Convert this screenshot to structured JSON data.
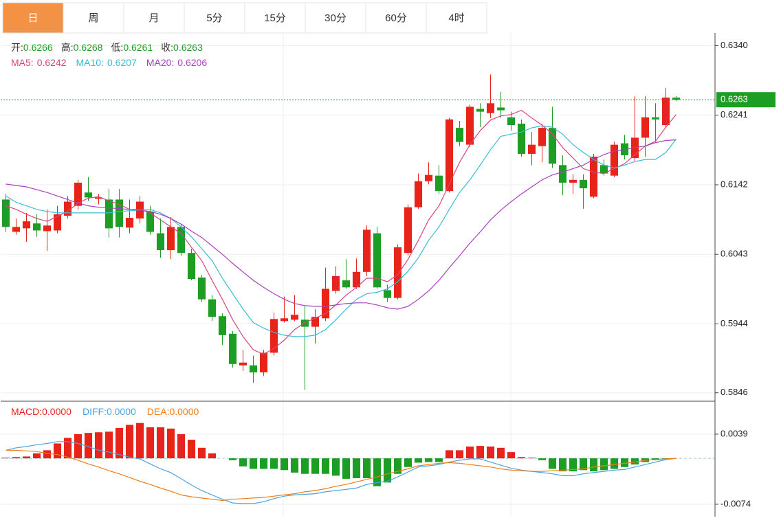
{
  "tabs": [
    "日",
    "周",
    "月",
    "5分",
    "15分",
    "30分",
    "60分",
    "4时"
  ],
  "active_tab": 0,
  "chart_data": [
    {
      "type": "candlestick",
      "categories": [
        null,
        null,
        null,
        null,
        null,
        null,
        null,
        null,
        null,
        null,
        null,
        null,
        null,
        null,
        null,
        null,
        null,
        null,
        null,
        null,
        null,
        null,
        null,
        null,
        null,
        null,
        null,
        null,
        null,
        null,
        null,
        null,
        null,
        null,
        null,
        null,
        null,
        null,
        null,
        null,
        null,
        null,
        null,
        null,
        null,
        null,
        null,
        null,
        null,
        null,
        null,
        null,
        null,
        null,
        null,
        null,
        null,
        null,
        null,
        null,
        null,
        null,
        null,
        null,
        null,
        null
      ],
      "up_color": "#e8231a",
      "down_color": "#1b9e23",
      "grid": true,
      "ylim": [
        0.5835,
        0.6358
      ],
      "yticks": [
        {
          "value": 0.634,
          "label": "0.6340"
        },
        0.6241,
        0.6142,
        0.6043,
        0.5944,
        0.5846
      ],
      "ohlc": [
        {
          "label": "开:",
          "value": 0.6266
        },
        {
          "label": "高:",
          "value": 0.6268
        },
        {
          "label": "低:",
          "value": 0.6261
        },
        {
          "label": "收:",
          "value": 0.6263
        }
      ],
      "open": [
        0.6121,
        0.6075,
        0.608,
        0.6087,
        0.6076,
        0.6077,
        0.6098,
        0.6112,
        0.6131,
        0.6122,
        0.6121,
        0.6121,
        0.6081,
        0.6094,
        0.6104,
        0.6073,
        0.6049,
        0.6082,
        0.6045,
        0.601,
        0.5979,
        0.5955,
        0.593,
        0.5885,
        0.5885,
        0.5875,
        0.5903,
        0.5948,
        0.595,
        0.595,
        0.594,
        0.5952,
        0.5991,
        0.6006,
        0.5996,
        0.6018,
        0.6073,
        0.5992,
        0.5981,
        0.6045,
        0.611,
        0.6147,
        0.6155,
        0.6133,
        0.6223,
        0.6199,
        0.625,
        0.6244,
        0.6252,
        0.6238,
        0.6229,
        0.6186,
        0.6197,
        0.6223,
        0.617,
        0.6145,
        0.6149,
        0.6125,
        0.617,
        0.6155,
        0.6201,
        0.618,
        0.6209,
        0.6238,
        0.6227,
        0.6266
      ],
      "high": [
        0.6129,
        0.6094,
        0.6102,
        0.61,
        0.6107,
        0.6112,
        0.6126,
        0.6149,
        0.6153,
        0.6129,
        0.6136,
        0.6136,
        0.6121,
        0.6126,
        0.6112,
        0.6094,
        0.6096,
        0.6086,
        0.6051,
        0.6014,
        0.5985,
        0.5959,
        0.5934,
        0.5907,
        0.5899,
        0.5907,
        0.596,
        0.5983,
        0.5985,
        0.5969,
        0.5965,
        0.6024,
        0.6026,
        0.6036,
        0.6037,
        0.6084,
        0.6082,
        0.6,
        0.6057,
        0.6114,
        0.6158,
        0.6174,
        0.617,
        0.6237,
        0.6233,
        0.6256,
        0.6258,
        0.6299,
        0.6274,
        0.6246,
        0.6235,
        0.6217,
        0.6229,
        0.6253,
        0.6184,
        0.6157,
        0.6157,
        0.6186,
        0.6178,
        0.6203,
        0.6213,
        0.6268,
        0.6268,
        0.6258,
        0.628,
        0.6268
      ],
      "low": [
        0.6075,
        0.6071,
        0.6061,
        0.6068,
        0.6048,
        0.6073,
        0.6094,
        0.6107,
        0.6119,
        0.6114,
        0.6067,
        0.6067,
        0.6073,
        0.6087,
        0.6071,
        0.6038,
        0.6036,
        0.6041,
        0.6006,
        0.5975,
        0.5948,
        0.5914,
        0.5882,
        0.5877,
        0.586,
        0.587,
        0.5899,
        0.5946,
        0.5948,
        0.585,
        0.5916,
        0.5948,
        0.5987,
        0.5994,
        0.5994,
        0.6012,
        0.5994,
        0.5975,
        0.5979,
        0.6041,
        0.6108,
        0.6143,
        0.6129,
        0.6131,
        0.6197,
        0.6196,
        0.6224,
        0.6237,
        0.6237,
        0.6219,
        0.6182,
        0.617,
        0.6174,
        0.6166,
        0.6127,
        0.6129,
        0.6108,
        0.6123,
        0.6155,
        0.6153,
        0.6178,
        0.6176,
        0.6182,
        0.6203,
        0.6223,
        0.6261
      ],
      "close": [
        0.6082,
        0.6082,
        0.609,
        0.6077,
        0.6084,
        0.61,
        0.6118,
        0.6145,
        0.6124,
        0.6124,
        0.608,
        0.6082,
        0.6095,
        0.6118,
        0.6075,
        0.6049,
        0.6082,
        0.6045,
        0.6008,
        0.5979,
        0.5954,
        0.5928,
        0.5887,
        0.5889,
        0.5875,
        0.5903,
        0.5951,
        0.5952,
        0.5957,
        0.594,
        0.5954,
        0.5994,
        0.6012,
        0.5996,
        0.6018,
        0.6078,
        0.5996,
        0.5981,
        0.6053,
        0.611,
        0.6147,
        0.6156,
        0.6133,
        0.6235,
        0.6203,
        0.6253,
        0.6246,
        0.6258,
        0.6248,
        0.6227,
        0.6186,
        0.6199,
        0.6223,
        0.6172,
        0.6145,
        0.6149,
        0.6137,
        0.6182,
        0.6158,
        0.6199,
        0.6184,
        0.6209,
        0.6238,
        0.6235,
        0.6266,
        0.6263
      ],
      "series": [
        {
          "label": "MA5:",
          "value": 0.6242,
          "color": "#d6467f",
          "values": [
            0.6112,
            0.6107,
            0.61,
            0.6094,
            0.609,
            0.6097,
            0.6104,
            0.6116,
            0.6123,
            0.6125,
            0.6119,
            0.6114,
            0.6107,
            0.6107,
            0.6102,
            0.6092,
            0.6082,
            0.6073,
            0.6053,
            0.6034,
            0.6006,
            0.5979,
            0.595,
            0.5926,
            0.5907,
            0.5901,
            0.5909,
            0.5921,
            0.5936,
            0.5946,
            0.5952,
            0.5959,
            0.5971,
            0.5985,
            0.5996,
            0.6009,
            0.6009,
            0.6004,
            0.6014,
            0.6036,
            0.6063,
            0.6092,
            0.6112,
            0.6143,
            0.6174,
            0.6199,
            0.6219,
            0.6234,
            0.624,
            0.6242,
            0.6248,
            0.6237,
            0.6227,
            0.6214,
            0.6195,
            0.618,
            0.6165,
            0.616,
            0.6158,
            0.6165,
            0.6172,
            0.6185,
            0.6197,
            0.6204,
            0.6224,
            0.6242
          ]
        },
        {
          "label": "MA10:",
          "value": 0.6207,
          "color": "#3bbcd6",
          "values": [
            0.6126,
            0.6117,
            0.6112,
            0.6107,
            0.6104,
            0.6102,
            0.6102,
            0.6102,
            0.6102,
            0.6102,
            0.6102,
            0.6104,
            0.6105,
            0.6106,
            0.6107,
            0.6102,
            0.6094,
            0.6082,
            0.6068,
            0.6051,
            0.6034,
            0.6009,
            0.5987,
            0.5965,
            0.5946,
            0.5938,
            0.5932,
            0.5928,
            0.5926,
            0.5926,
            0.5928,
            0.5936,
            0.595,
            0.5965,
            0.5979,
            0.5987,
            0.5989,
            0.5994,
            0.6004,
            0.6019,
            0.6038,
            0.6063,
            0.6082,
            0.6107,
            0.6131,
            0.6149,
            0.617,
            0.6192,
            0.6211,
            0.6214,
            0.6217,
            0.6223,
            0.6226,
            0.6224,
            0.6214,
            0.6199,
            0.6188,
            0.6178,
            0.617,
            0.6166,
            0.617,
            0.6175,
            0.6178,
            0.6178,
            0.6188,
            0.6207
          ]
        },
        {
          "label": "MA20:",
          "value": 0.6206,
          "color": "#a742bd",
          "values": [
            0.6143,
            0.6141,
            0.6139,
            0.6135,
            0.6131,
            0.6126,
            0.6121,
            0.6116,
            0.6112,
            0.611,
            0.6109,
            0.6108,
            0.6107,
            0.6106,
            0.6104,
            0.61,
            0.6094,
            0.6086,
            0.6076,
            0.6067,
            0.6055,
            0.6043,
            0.603,
            0.6018,
            0.6006,
            0.5996,
            0.5987,
            0.5979,
            0.5973,
            0.597,
            0.5969,
            0.5969,
            0.5971,
            0.5973,
            0.5974,
            0.5974,
            0.5971,
            0.5967,
            0.5965,
            0.5969,
            0.5979,
            0.5991,
            0.6006,
            0.6024,
            0.6041,
            0.6059,
            0.6075,
            0.6092,
            0.6106,
            0.6118,
            0.6129,
            0.6139,
            0.6149,
            0.6156,
            0.616,
            0.6165,
            0.617,
            0.6178,
            0.6185,
            0.619,
            0.6192,
            0.6195,
            0.6197,
            0.6202,
            0.6205,
            0.6206
          ]
        }
      ]
    },
    {
      "type": "macd",
      "up_color": "#e8231a",
      "down_color": "#1b9e23",
      "grid": true,
      "ylim": [
        -0.0094,
        0.0091
      ],
      "yticks": [
        0.0039,
        -0.0074
      ],
      "histogram": {
        "label": "MACD:",
        "value": 0,
        "value_label": "0.0000",
        "color": "#e8231a",
        "values": [
          0.0001,
          0.0002,
          0.0003,
          0.0008,
          0.0013,
          0.0024,
          0.0033,
          0.0039,
          0.0041,
          0.0042,
          0.0043,
          0.0049,
          0.0054,
          0.0057,
          0.005,
          0.005,
          0.0048,
          0.0039,
          0.003,
          0.0017,
          0.0008,
          0,
          -0.0003,
          -0.0013,
          -0.0017,
          -0.0017,
          -0.0017,
          -0.0019,
          -0.0023,
          -0.0025,
          -0.0025,
          -0.0025,
          -0.0028,
          -0.0033,
          -0.0032,
          -0.0032,
          -0.0045,
          -0.0039,
          -0.0025,
          -0.0014,
          -0.0007,
          -0.0006,
          -0.0006,
          0.0013,
          0.0013,
          0.0019,
          0.002,
          0.0019,
          0.0017,
          0.001,
          0.0002,
          0.0001,
          -0.0003,
          -0.0017,
          -0.0021,
          -0.0021,
          -0.0019,
          -0.0021,
          -0.0019,
          -0.0017,
          -0.0014,
          -0.001,
          -0.0006,
          -0.0003,
          -0.0001,
          0
        ]
      },
      "series": [
        {
          "label": "DIFF:",
          "value": 0,
          "value_label": "0.0000",
          "color": "#4aa3df",
          "values": [
            0.0013,
            0.0017,
            0.0019,
            0.0022,
            0.0024,
            0.0027,
            0.0027,
            0.0024,
            0.0019,
            0.0013,
            0.001,
            0.0006,
            0.0002,
            -0.0001,
            -0.0009,
            -0.0017,
            -0.0023,
            -0.0033,
            -0.0043,
            -0.0052,
            -0.0059,
            -0.0066,
            -0.0072,
            -0.0073,
            -0.0073,
            -0.007,
            -0.0065,
            -0.0061,
            -0.0059,
            -0.0058,
            -0.0057,
            -0.0054,
            -0.0052,
            -0.005,
            -0.0048,
            -0.0042,
            -0.0039,
            -0.0037,
            -0.003,
            -0.0022,
            -0.0014,
            -0.0012,
            -0.001,
            -0.0006,
            -0.0003,
            -0.0001,
            -0.0001,
            -0.0006,
            -0.0011,
            -0.0016,
            -0.0019,
            -0.0021,
            -0.0023,
            -0.0025,
            -0.0028,
            -0.0028,
            -0.0025,
            -0.0023,
            -0.0021,
            -0.0019,
            -0.0018,
            -0.0014,
            -0.001,
            -0.0006,
            -0.0002,
            0
          ]
        },
        {
          "label": "DEA:",
          "value": 0,
          "value_label": "0.0000",
          "color": "#ee7d1b",
          "values": [
            0.0013,
            0.0013,
            0.0012,
            0.0011,
            0.0008,
            0.0006,
            0.0002,
            -0.0003,
            -0.0009,
            -0.0014,
            -0.002,
            -0.0025,
            -0.0031,
            -0.0037,
            -0.0042,
            -0.0048,
            -0.0053,
            -0.0059,
            -0.0062,
            -0.0064,
            -0.0066,
            -0.0068,
            -0.0066,
            -0.0065,
            -0.0064,
            -0.0063,
            -0.0061,
            -0.0059,
            -0.0057,
            -0.0054,
            -0.0052,
            -0.0049,
            -0.0045,
            -0.0042,
            -0.0038,
            -0.0034,
            -0.003,
            -0.0025,
            -0.0021,
            -0.0017,
            -0.0012,
            -0.001,
            -0.0008,
            -0.0007,
            -0.0008,
            -0.001,
            -0.0012,
            -0.0014,
            -0.0017,
            -0.0019,
            -0.002,
            -0.0021,
            -0.0021,
            -0.002,
            -0.0019,
            -0.0018,
            -0.0017,
            -0.0014,
            -0.0012,
            -0.001,
            -0.0008,
            -0.0006,
            -0.0003,
            -0.0002,
            -0.0001,
            0
          ]
        }
      ]
    }
  ]
}
